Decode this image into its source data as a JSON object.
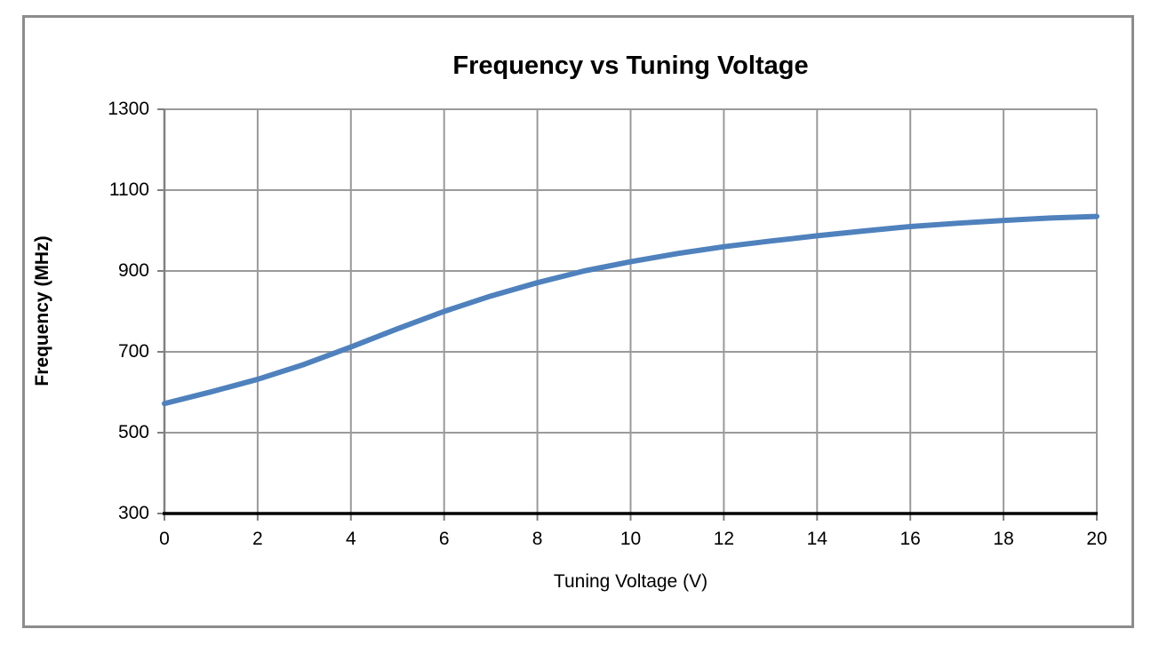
{
  "chart_data": {
    "type": "line",
    "title": "Frequency vs Tuning Voltage",
    "xlabel": "Tuning Voltage (V)",
    "ylabel": "Frequency (MHz)",
    "xlim": [
      0,
      20
    ],
    "ylim": [
      300,
      1300
    ],
    "x_ticks": [
      0,
      2,
      4,
      6,
      8,
      10,
      12,
      14,
      16,
      18,
      20
    ],
    "y_ticks": [
      300,
      500,
      700,
      900,
      1100,
      1300
    ],
    "grid": true,
    "legend_position": "none",
    "series": [
      {
        "name": "Frequency",
        "x": [
          0,
          1,
          2,
          3,
          4,
          5,
          6,
          7,
          8,
          9,
          10,
          11,
          12,
          13,
          14,
          15,
          16,
          17,
          18,
          19,
          20
        ],
        "y": [
          572,
          601,
          632,
          669,
          712,
          757,
          800,
          838,
          871,
          900,
          923,
          943,
          960,
          974,
          987,
          999,
          1010,
          1018,
          1025,
          1031,
          1035
        ]
      }
    ]
  },
  "colors": {
    "line": "#4F81BD",
    "gridline": "#9a9a9a",
    "y_axis_line": "#808080",
    "x_axis_line": "#000000",
    "frame_border": "#8c8c8c",
    "text": "#000000",
    "background": "#ffffff"
  }
}
